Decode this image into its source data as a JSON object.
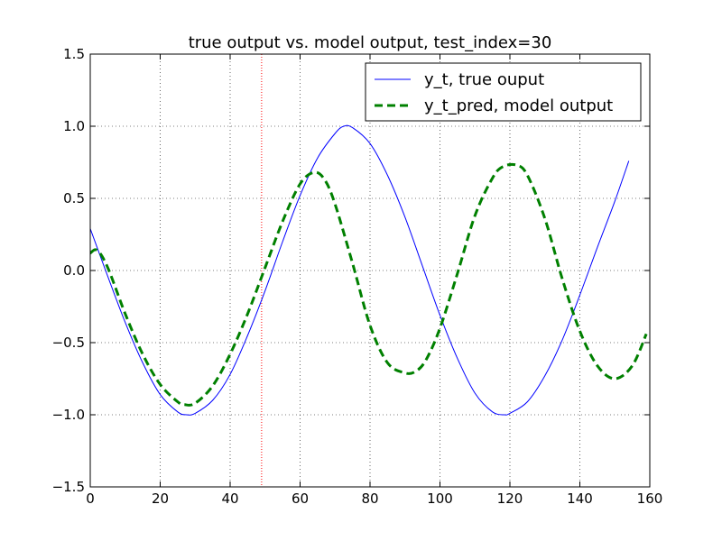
{
  "chart_data": {
    "type": "line",
    "title": "true output vs. model output, test_index=30",
    "xlabel": "",
    "ylabel": "",
    "xlim": [
      0,
      160
    ],
    "ylim": [
      -1.5,
      1.5
    ],
    "xticks": [
      0,
      20,
      40,
      60,
      80,
      100,
      120,
      140,
      160
    ],
    "xtick_labels": [
      "0",
      "20",
      "40",
      "60",
      "80",
      "100",
      "120",
      "140",
      "160"
    ],
    "yticks": [
      -1.5,
      -1.0,
      -0.5,
      0.0,
      0.5,
      1.0,
      1.5
    ],
    "ytick_labels": [
      "−1.5",
      "−1.0",
      "−0.5",
      "0.0",
      "0.5",
      "1.0",
      "1.5"
    ],
    "grid": true,
    "legend_position": "top-right",
    "vertical_marker": {
      "x": 49,
      "color": "#ff0000",
      "style": "dotted"
    },
    "series": [
      {
        "name": "y_t, true ouput",
        "color": "#0000ff",
        "style": "solid",
        "x": [
          0,
          5,
          10,
          15,
          20,
          25,
          27.5,
          30,
          35,
          40,
          45,
          50,
          55,
          60,
          65,
          70,
          72.5,
          75,
          80,
          85,
          90,
          95,
          100,
          105,
          110,
          115,
          118.5,
          120,
          125,
          130,
          135,
          140,
          145,
          150,
          154
        ],
        "y": [
          0.29,
          -0.04,
          -0.36,
          -0.64,
          -0.86,
          -0.98,
          -1.0,
          -0.99,
          -0.9,
          -0.72,
          -0.45,
          -0.14,
          0.2,
          0.52,
          0.78,
          0.95,
          1.0,
          0.99,
          0.88,
          0.66,
          0.37,
          0.03,
          -0.31,
          -0.61,
          -0.85,
          -0.98,
          -1.0,
          -0.99,
          -0.91,
          -0.73,
          -0.48,
          -0.17,
          0.16,
          0.48,
          0.76
        ]
      },
      {
        "name": "y_t_pred, model output",
        "color": "#008000",
        "style": "dashed",
        "x": [
          0,
          2,
          5,
          10,
          15,
          20,
          25,
          27,
          30,
          35,
          40,
          45,
          50,
          55,
          60,
          64,
          67,
          70,
          75,
          80,
          85,
          90,
          93,
          96,
          100,
          105,
          110,
          115,
          118,
          122,
          125,
          130,
          135,
          140,
          145,
          150,
          155,
          159
        ],
        "y": [
          0.12,
          0.14,
          0.02,
          -0.3,
          -0.58,
          -0.79,
          -0.91,
          -0.93,
          -0.92,
          -0.8,
          -0.58,
          -0.3,
          0.02,
          0.34,
          0.6,
          0.68,
          0.63,
          0.46,
          0.05,
          -0.38,
          -0.64,
          -0.71,
          -0.7,
          -0.62,
          -0.4,
          -0.02,
          0.38,
          0.64,
          0.72,
          0.73,
          0.66,
          0.36,
          -0.06,
          -0.42,
          -0.66,
          -0.75,
          -0.66,
          -0.44
        ]
      }
    ]
  }
}
